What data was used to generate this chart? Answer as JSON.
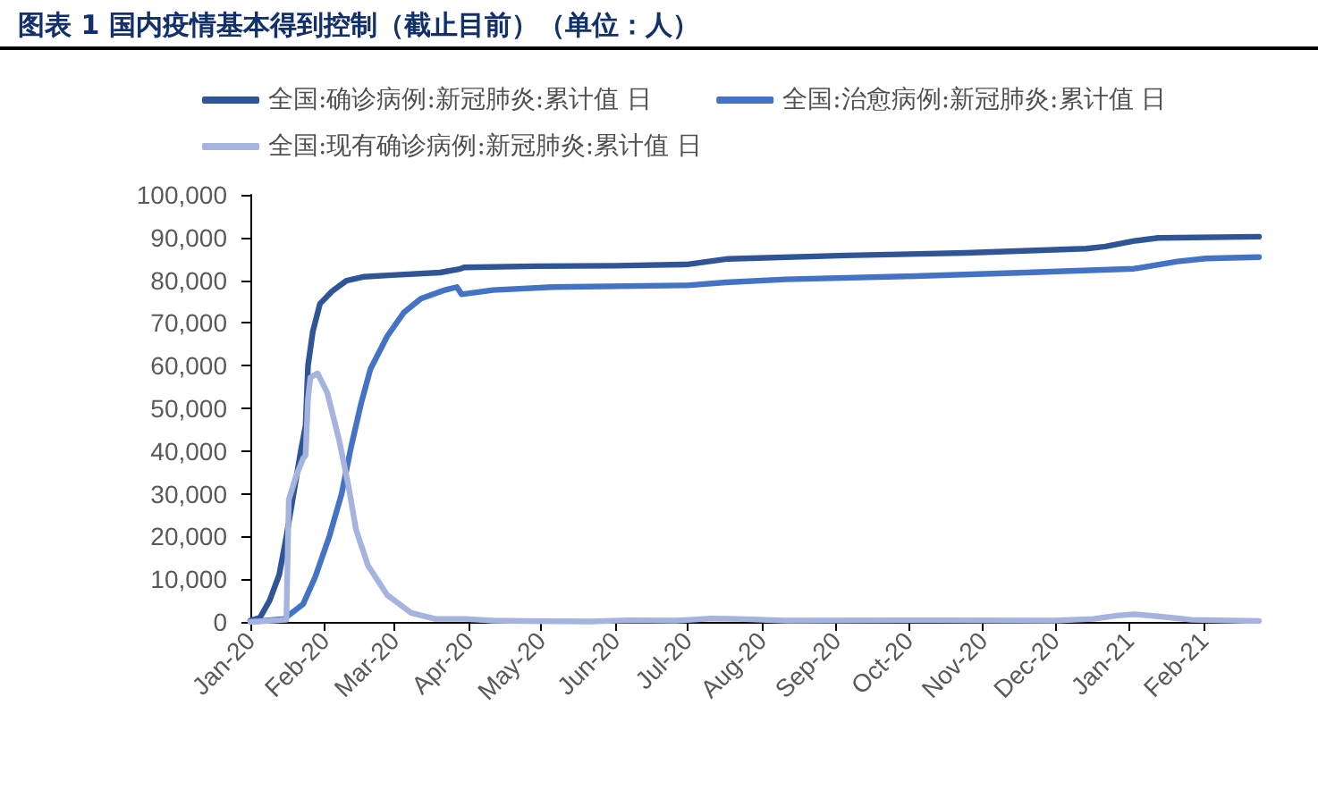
{
  "chart_data": {
    "type": "line",
    "title": "图表 1 国内疫情基本得到控制（截止目前）（单位：人）",
    "series": [
      {
        "name": "全国:确诊病例:新冠肺炎:累计值 日",
        "color": "#2f5597",
        "x": [
          "2020-01-20",
          "2020-01-24",
          "2020-01-28",
          "2020-02-01",
          "2020-02-04",
          "2020-02-07",
          "2020-02-10",
          "2020-02-12",
          "2020-02-13",
          "2020-02-15",
          "2020-02-18",
          "2020-02-23",
          "2020-02-29",
          "2020-03-07",
          "2020-03-19",
          "2020-04-08",
          "2020-04-16",
          "2020-04-18",
          "2020-05-18",
          "2020-06-20",
          "2020-07-20",
          "2020-08-06",
          "2020-09-24",
          "2020-11-13",
          "2021-01-02",
          "2021-01-10",
          "2021-01-22",
          "2021-02-01",
          "2021-03-15"
        ],
        "values": [
          300,
          1000,
          5000,
          11000,
          20000,
          30000,
          40000,
          46000,
          60000,
          68000,
          74500,
          77400,
          79900,
          80800,
          81200,
          81800,
          82600,
          83000,
          83300,
          83400,
          83700,
          85000,
          85800,
          86400,
          87400,
          87900,
          89200,
          89900,
          90200
        ]
      },
      {
        "name": "全国:治愈病例:新冠肺炎:累计值 日",
        "color": "#4472c4",
        "x": [
          "2020-01-20",
          "2020-02-03",
          "2020-02-11",
          "2020-02-16",
          "2020-02-22",
          "2020-02-27",
          "2020-03-02",
          "2020-03-06",
          "2020-03-10",
          "2020-03-17",
          "2020-03-24",
          "2020-03-31",
          "2020-04-10",
          "2020-04-15",
          "2020-04-17",
          "2020-04-30",
          "2020-05-25",
          "2020-07-20",
          "2020-08-05",
          "2020-08-30",
          "2020-10-19",
          "2020-12-08",
          "2021-01-22",
          "2021-02-09",
          "2021-02-21",
          "2021-03-15"
        ],
        "values": [
          0,
          700,
          4200,
          10500,
          20200,
          30000,
          41100,
          50900,
          59200,
          66900,
          72500,
          75700,
          77700,
          78400,
          76700,
          77700,
          78400,
          78800,
          79500,
          80200,
          80900,
          81800,
          82700,
          84400,
          85100,
          85400
        ]
      },
      {
        "name": "全国:现有确诊病例:新冠肺炎:累计值 日",
        "color": "#a5b4de",
        "x": [
          "2020-01-20",
          "2020-02-04",
          "2020-02-05",
          "2020-02-08",
          "2020-02-11",
          "2020-02-12",
          "2020-02-13",
          "2020-02-14",
          "2020-02-17",
          "2020-02-21",
          "2020-02-26",
          "2020-03-01",
          "2020-03-04",
          "2020-03-09",
          "2020-03-17",
          "2020-03-27",
          "2020-04-06",
          "2020-04-18",
          "2020-04-30",
          "2020-05-13",
          "2020-06-10",
          "2020-06-25",
          "2020-07-15",
          "2020-07-30",
          "2020-08-10",
          "2020-08-30",
          "2020-10-30",
          "2020-12-20",
          "2021-01-05",
          "2021-01-15",
          "2021-01-22",
          "2021-02-01",
          "2021-02-15",
          "2021-03-15"
        ],
        "values": [
          0,
          500,
          28600,
          34100,
          38300,
          39000,
          52300,
          57200,
          58200,
          53700,
          42500,
          31400,
          21600,
          13200,
          6300,
          2100,
          700,
          700,
          300,
          200,
          100,
          400,
          300,
          800,
          700,
          300,
          400,
          300,
          700,
          1500,
          1800,
          1300,
          500,
          200
        ]
      }
    ],
    "xlim": [
      "2020-01-20",
      "2021-03-15"
    ],
    "xticks": [
      {
        "value": "2020-01-20",
        "label": "Jan-20"
      },
      {
        "value": "2020-02-20",
        "label": "Feb-20"
      },
      {
        "value": "2020-03-20",
        "label": "Mar-20"
      },
      {
        "value": "2020-04-20",
        "label": "Apr-20"
      },
      {
        "value": "2020-05-20",
        "label": "May-20"
      },
      {
        "value": "2020-06-20",
        "label": "Jun-20"
      },
      {
        "value": "2020-07-20",
        "label": "Jul-20"
      },
      {
        "value": "2020-08-20",
        "label": "Aug-20"
      },
      {
        "value": "2020-09-20",
        "label": "Sep-20"
      },
      {
        "value": "2020-10-20",
        "label": "Oct-20"
      },
      {
        "value": "2020-11-20",
        "label": "Nov-20"
      },
      {
        "value": "2020-12-20",
        "label": "Dec-20"
      },
      {
        "value": "2021-01-20",
        "label": "Jan-21"
      },
      {
        "value": "2021-02-20",
        "label": "Feb-21"
      }
    ],
    "ylim": [
      0,
      100000
    ],
    "yticks": [
      0,
      {
        "value": 10000,
        "label": "10,000"
      },
      {
        "value": 20000,
        "label": "20,000"
      },
      {
        "value": 30000,
        "label": "30,000"
      },
      {
        "value": 40000,
        "label": "40,000"
      },
      {
        "value": 50000,
        "label": "50,000"
      },
      {
        "value": 60000,
        "label": "60,000"
      },
      {
        "value": 70000,
        "label": "70,000"
      },
      {
        "value": 80000,
        "label": "80,000"
      },
      {
        "value": 90000,
        "label": "90,000"
      },
      {
        "value": 100000,
        "label": "100,000"
      }
    ],
    "legend": "top",
    "marker": "none",
    "line_style": "solid"
  }
}
